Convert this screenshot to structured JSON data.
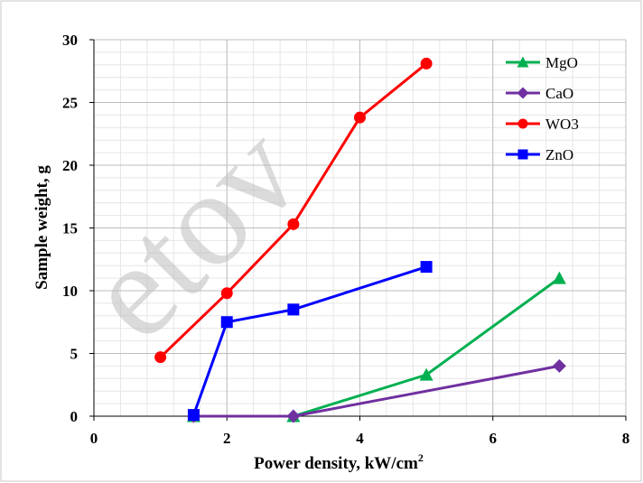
{
  "chart_data": {
    "type": "line",
    "xlabel": "Power density, kW/cm",
    "xlabel_sup": "2",
    "ylabel": "Sample weight, g",
    "xlim": [
      0,
      8
    ],
    "ylim": [
      0,
      30
    ],
    "x_ticks": [
      0,
      2,
      4,
      6,
      8
    ],
    "y_ticks": [
      0,
      5,
      10,
      15,
      20,
      25,
      30
    ],
    "grid": true,
    "legend_position": "top-right",
    "series": [
      {
        "name": "MgO",
        "color": "#00b050",
        "marker": "triangle",
        "x": [
          1.5,
          3,
          5,
          7
        ],
        "y": [
          0,
          0,
          3.3,
          11
        ]
      },
      {
        "name": "CaO",
        "color": "#7030a0",
        "marker": "diamond",
        "x": [
          1.5,
          3,
          7
        ],
        "y": [
          0,
          0,
          4
        ]
      },
      {
        "name": "WO3",
        "color": "#ff0000",
        "marker": "circle",
        "x": [
          1,
          2,
          3,
          4,
          5
        ],
        "y": [
          4.7,
          9.8,
          15.3,
          23.8,
          28.1
        ]
      },
      {
        "name": "ZnO",
        "color": "#0000ff",
        "marker": "square",
        "x": [
          1.5,
          2,
          3,
          5
        ],
        "y": [
          0.1,
          7.5,
          8.5,
          11.9
        ]
      }
    ]
  },
  "watermark": "etov"
}
